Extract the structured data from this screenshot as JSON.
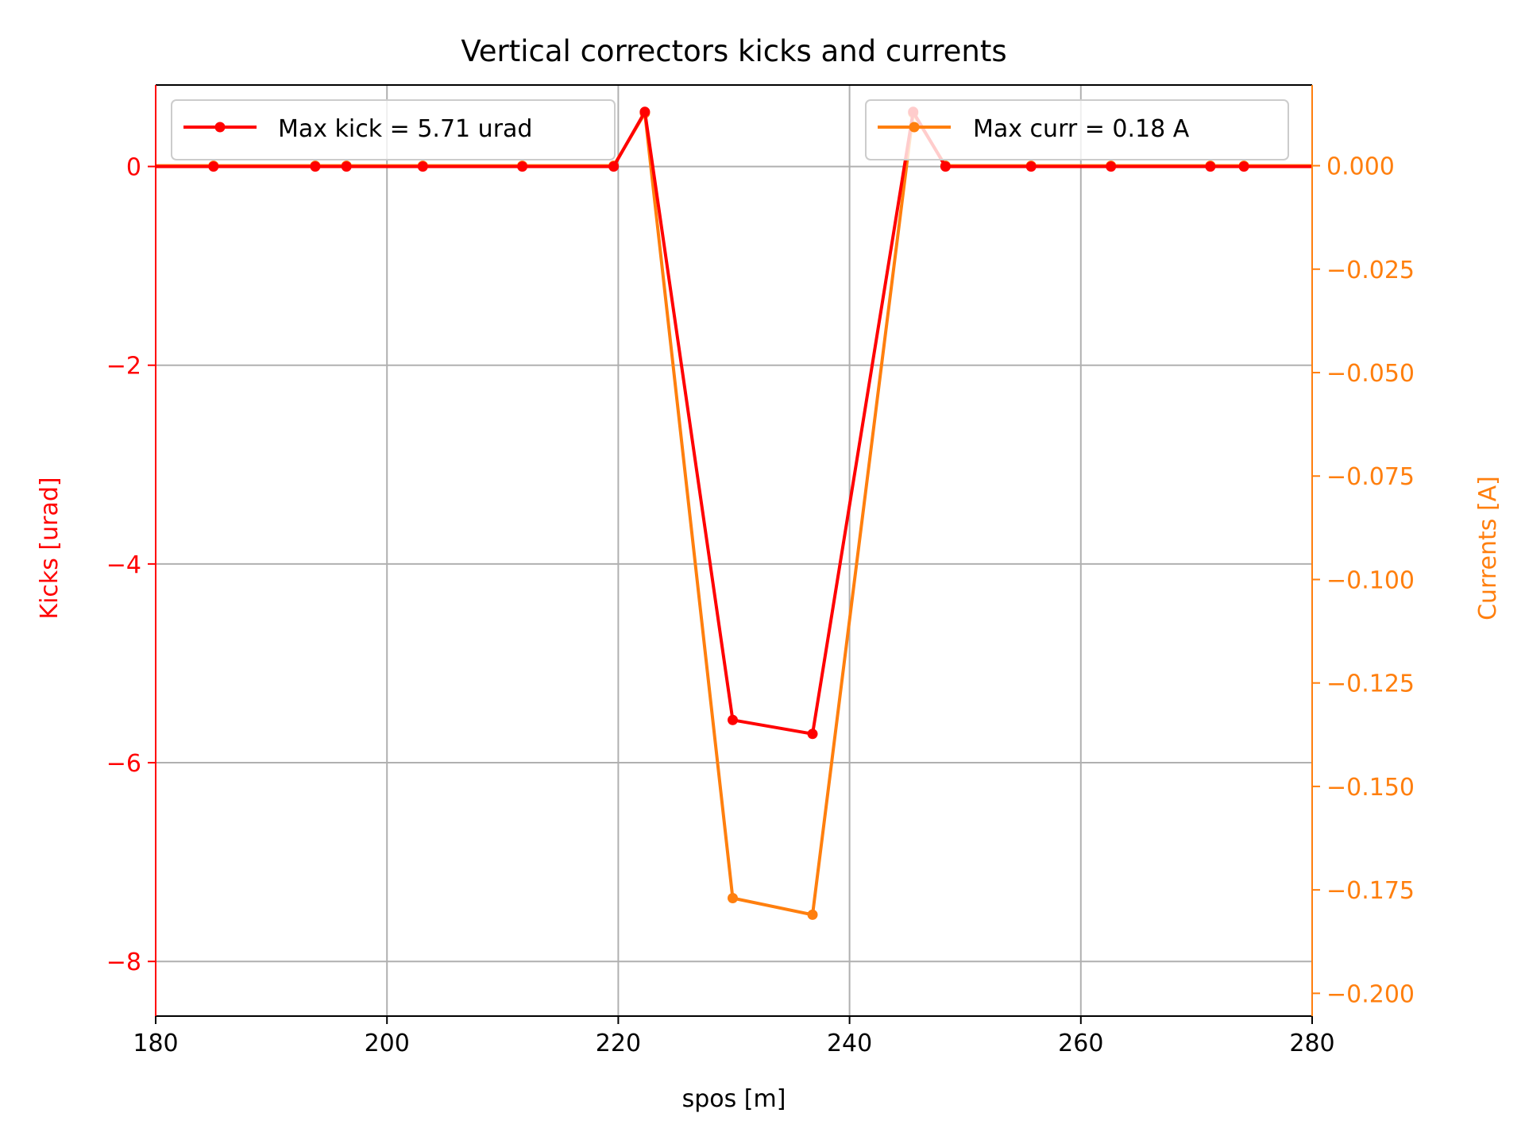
{
  "chart_data": {
    "type": "line",
    "title": "Vertical correctors kicks and currents",
    "xlabel": "spos [m]",
    "ylabel": "Kicks [urad]",
    "y2label": "Currents [A]",
    "xlim": [
      180,
      280
    ],
    "ylim": [
      -8.55,
      0.82
    ],
    "y2lim": [
      -0.2055,
      0.0195
    ],
    "xticks": [
      180,
      200,
      220,
      240,
      260,
      280
    ],
    "yticks": [
      0,
      -2,
      -4,
      -6,
      -8
    ],
    "y2ticks": [
      0.0,
      -0.025,
      -0.05,
      -0.075,
      -0.1,
      -0.125,
      -0.15,
      -0.175,
      -0.2
    ],
    "ytick_labels": [
      "0",
      "−2",
      "−4",
      "−6",
      "−8"
    ],
    "y2tick_labels": [
      "0.000",
      "−0.025",
      "−0.050",
      "−0.075",
      "−0.100",
      "−0.125",
      "−0.150",
      "−0.175",
      "−0.200"
    ],
    "grid": true,
    "series": [
      {
        "name": "Max kick = 5.71 urad",
        "axis": "left",
        "color": "#ff0000",
        "x": [
          180,
          185,
          193.8,
          196.5,
          203.1,
          211.7,
          219.6,
          222.3,
          229.9,
          236.8,
          245.5,
          248.3,
          255.7,
          262.6,
          271.2,
          274.1,
          280
        ],
        "y": [
          0,
          0,
          0,
          0,
          0,
          0,
          0,
          0.55,
          -5.57,
          -5.71,
          0.55,
          0,
          0,
          0,
          0,
          0,
          0
        ]
      },
      {
        "name": "Max curr = 0.18 A",
        "axis": "right",
        "color": "#ff7f0e",
        "x": [
          180,
          185,
          193.8,
          196.5,
          203.1,
          211.7,
          219.6,
          222.3,
          229.9,
          236.8,
          245.5,
          248.3,
          255.7,
          262.6,
          271.2,
          274.1,
          280
        ],
        "y": [
          0,
          0,
          0,
          0,
          0,
          0,
          0,
          0.0127,
          -0.177,
          -0.181,
          0.0127,
          0,
          0,
          0,
          0,
          0,
          0
        ]
      }
    ],
    "legend_left_placement": "upper-left",
    "legend_right_placement": "upper-right"
  },
  "colors": {
    "left_axis": "#ff0000",
    "right_axis": "#ff7f0e",
    "grid": "#b0b0b0",
    "frame": "#000000"
  }
}
